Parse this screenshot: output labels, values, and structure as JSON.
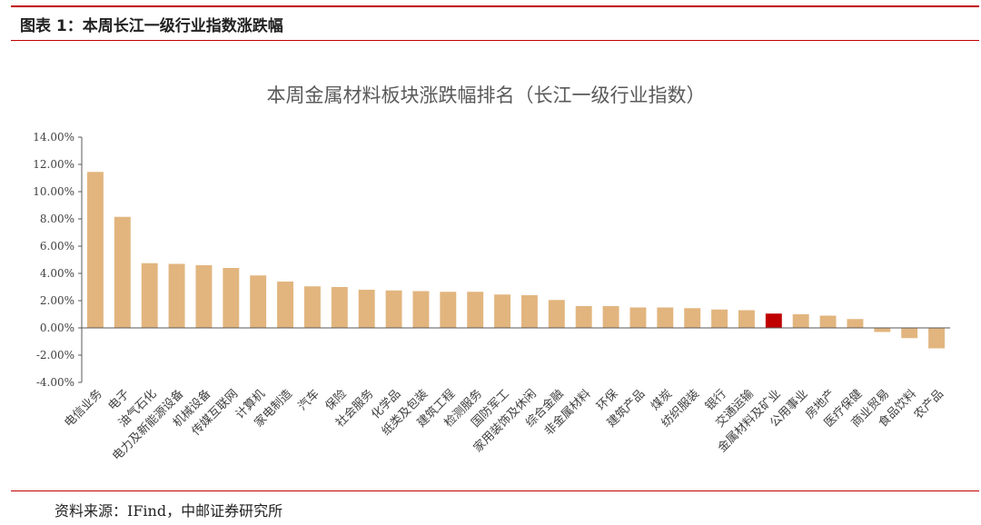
{
  "figure_label": "图表 1：本周长江一级行业指数涨跌幅",
  "source_note": "资料来源：IFind，中邮证券研究所",
  "colors": {
    "bar": "#e2b57f",
    "highlight": "#c00000",
    "rule": "#c00000",
    "axis": "#595959",
    "text": "#404040"
  },
  "chart_data": {
    "type": "bar",
    "title": "本周金属材料板块涨跌幅排名（长江一级行业指数）",
    "xlabel": "",
    "ylabel": "",
    "ylim": [
      -4,
      14
    ],
    "yticks": [
      "14.00%",
      "12.00%",
      "10.00%",
      "8.00%",
      "6.00%",
      "4.00%",
      "2.00%",
      "0.00%",
      "-2.00%",
      "-4.00%"
    ],
    "grid": false,
    "legend": "none",
    "highlight_category": "金属材料及矿业",
    "categories": [
      "电信业务",
      "电子",
      "油气石化",
      "电力及新能源设备",
      "机械设备",
      "传媒互联网",
      "计算机",
      "家电制造",
      "汽车",
      "保险",
      "社会服务",
      "化学品",
      "纸类及包装",
      "建筑工程",
      "检测服务",
      "国防军工",
      "家用装饰及休闲",
      "综合金融",
      "非金属材料",
      "环保",
      "建筑产品",
      "煤炭",
      "纺织服装",
      "银行",
      "交通运输",
      "金属材料及矿业",
      "公用事业",
      "房地产",
      "医疗保健",
      "商业贸易",
      "食品饮料",
      "农产品"
    ],
    "values": [
      11.45,
      8.15,
      4.75,
      4.7,
      4.6,
      4.4,
      3.85,
      3.4,
      3.05,
      3.0,
      2.8,
      2.75,
      2.7,
      2.65,
      2.65,
      2.45,
      2.4,
      2.05,
      1.6,
      1.6,
      1.5,
      1.5,
      1.45,
      1.35,
      1.3,
      1.05,
      1.0,
      0.9,
      0.65,
      -0.3,
      -0.75,
      -1.5
    ]
  }
}
